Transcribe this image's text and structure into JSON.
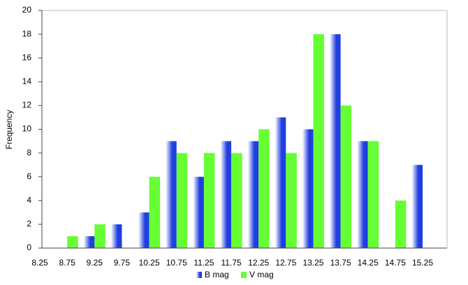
{
  "chart_data": {
    "type": "bar",
    "y_label": "Frequency",
    "categories": [
      "8.25",
      "8.75",
      "9.25",
      "9.75",
      "10.25",
      "10.75",
      "11.25",
      "11.75",
      "12.25",
      "12.75",
      "13.25",
      "13.75",
      "14.25",
      "14.75",
      "15.25"
    ],
    "series": [
      {
        "name": "B mag",
        "color": "#1f3fe0",
        "values": [
          0,
          0,
          1,
          2,
          3,
          9,
          6,
          9,
          9,
          11,
          10,
          18,
          9,
          0,
          7
        ]
      },
      {
        "name": "V mag",
        "color": "#66ff33",
        "values": [
          0,
          1,
          2,
          0,
          6,
          8,
          8,
          8,
          10,
          8,
          18,
          12,
          9,
          4,
          0
        ]
      }
    ],
    "ylim": [
      0,
      20
    ],
    "yticks": [
      0,
      2,
      4,
      6,
      8,
      10,
      12,
      14,
      16,
      18,
      20
    ],
    "legend": "bottom"
  }
}
